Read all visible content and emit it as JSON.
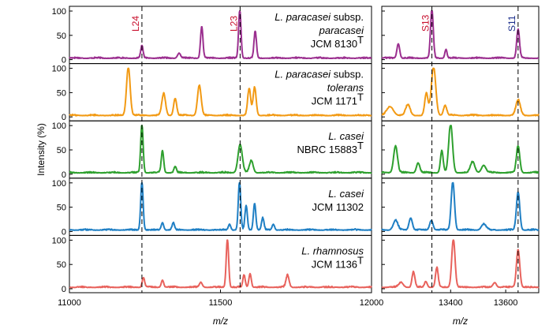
{
  "chart_data": {
    "type": "line",
    "ylabel": "Intensity (%)",
    "xlabel": "m/z",
    "yticks": [
      0,
      50,
      100
    ],
    "left_xlim": [
      11000,
      12000
    ],
    "right_xlim": [
      13150,
      13720
    ],
    "left_xticks": [
      11000,
      11500,
      12000
    ],
    "right_xticks": [
      13400,
      13600
    ],
    "reference_lines": [
      {
        "label": "L24",
        "mz": 11240,
        "color": "#c8102e",
        "panel": "left"
      },
      {
        "label": "L23",
        "mz": 11565,
        "color": "#c8102e",
        "panel": "left"
      },
      {
        "label": "S13",
        "mz": 13332,
        "color": "#c8102e",
        "panel": "right"
      },
      {
        "label": "S11",
        "mz": 13645,
        "color": "#1c2f8c",
        "panel": "right"
      }
    ],
    "series": [
      {
        "name": "L. paracasei subsp. paracasei JCM 8130T",
        "name_italic": "L. paracasei",
        "name_plain": " subsp.",
        "name_italic2": "paracasei",
        "strain": "JCM 8130",
        "sup": "T",
        "color": "#9b2f8f",
        "left_peaks": [
          [
            11240,
            25,
            4
          ],
          [
            11363,
            10,
            5
          ],
          [
            11438,
            65,
            4
          ],
          [
            11564,
            100,
            4
          ],
          [
            11615,
            55,
            4
          ]
        ],
        "right_peaks": [
          [
            13210,
            30,
            5
          ],
          [
            13332,
            100,
            5
          ],
          [
            13383,
            18,
            4
          ],
          [
            13645,
            60,
            5
          ]
        ]
      },
      {
        "name": "L. paracasei subsp. tolerans JCM 1171T",
        "name_italic": "L. paracasei",
        "name_plain": " subsp.",
        "name_italic2": "tolerans",
        "strain": "JCM 1171",
        "sup": "T",
        "color": "#f29a14",
        "left_peaks": [
          [
            11195,
            100,
            6
          ],
          [
            11312,
            45,
            6
          ],
          [
            11350,
            35,
            5
          ],
          [
            11430,
            62,
            6
          ],
          [
            11595,
            55,
            5
          ],
          [
            11613,
            58,
            5
          ]
        ],
        "right_peaks": [
          [
            13180,
            18,
            12
          ],
          [
            13245,
            22,
            8
          ],
          [
            13312,
            45,
            6
          ],
          [
            13338,
            100,
            8
          ],
          [
            13380,
            20,
            6
          ],
          [
            13645,
            32,
            8
          ]
        ]
      },
      {
        "name": "L. casei NBRC 15883T",
        "name_italic": "L. casei",
        "strain": "NBRC 15883",
        "sup": "T",
        "color": "#2ea02e",
        "left_peaks": [
          [
            11240,
            100,
            4
          ],
          [
            11308,
            45,
            4
          ],
          [
            11350,
            12,
            4
          ],
          [
            11565,
            58,
            7
          ],
          [
            11602,
            25,
            6
          ]
        ],
        "right_peaks": [
          [
            13200,
            55,
            7
          ],
          [
            13282,
            20,
            6
          ],
          [
            13368,
            45,
            5
          ],
          [
            13400,
            100,
            7
          ],
          [
            13480,
            22,
            8
          ],
          [
            13520,
            15,
            8
          ],
          [
            13645,
            55,
            6
          ]
        ]
      },
      {
        "name": "L. casei JCM 11302",
        "name_italic": "L. casei",
        "strain": "JCM 11302",
        "color": "#1f7fc4",
        "left_peaks": [
          [
            11240,
            100,
            4
          ],
          [
            11308,
            15,
            4
          ],
          [
            11344,
            15,
            4
          ],
          [
            11530,
            12,
            4
          ],
          [
            11563,
            100,
            4
          ],
          [
            11585,
            50,
            4
          ],
          [
            11613,
            55,
            4
          ],
          [
            11640,
            25,
            4
          ],
          [
            11675,
            12,
            4
          ]
        ],
        "right_peaks": [
          [
            13200,
            20,
            8
          ],
          [
            13255,
            25,
            6
          ],
          [
            13330,
            20,
            6
          ],
          [
            13408,
            100,
            6
          ],
          [
            13520,
            12,
            8
          ],
          [
            13645,
            78,
            6
          ]
        ]
      },
      {
        "name": "L. rhamnosus JCM 1136T",
        "name_italic": "L. rhamnosus",
        "strain": "JCM 1136",
        "sup": "T",
        "color": "#e8625c",
        "left_peaks": [
          [
            11245,
            20,
            4
          ],
          [
            11308,
            15,
            4
          ],
          [
            11435,
            10,
            5
          ],
          [
            11523,
            100,
            4
          ],
          [
            11578,
            25,
            4
          ],
          [
            11598,
            28,
            4
          ],
          [
            11722,
            25,
            5
          ]
        ],
        "right_peaks": [
          [
            13220,
            10,
            8
          ],
          [
            13265,
            32,
            5
          ],
          [
            13310,
            12,
            5
          ],
          [
            13350,
            40,
            5
          ],
          [
            13410,
            100,
            6
          ],
          [
            13560,
            10,
            6
          ],
          [
            13645,
            78,
            6
          ]
        ]
      }
    ]
  }
}
